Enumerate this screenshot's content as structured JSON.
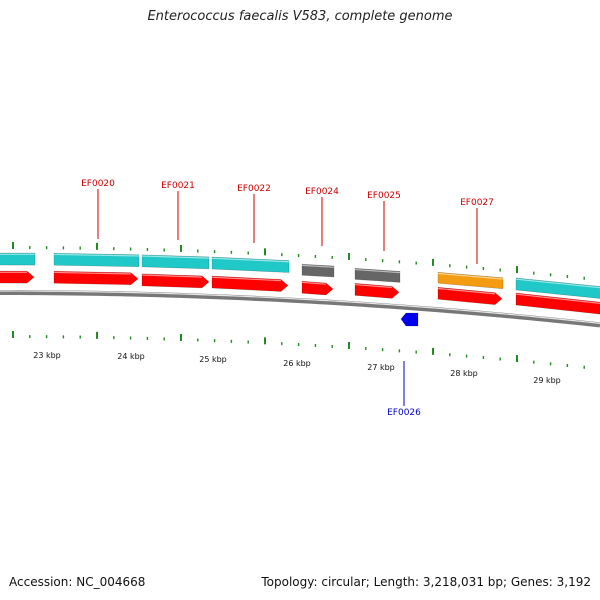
{
  "title": "Enterococcus faecalis V583, complete genome",
  "footer": {
    "accession": "Accession: NC_004668",
    "stats": "Topology: circular; Length: 3,218,031 bp; Genes: 3,192"
  },
  "colors": {
    "backbone": "#777777",
    "forward_cds": "#ff0000",
    "cds_cyan": "#20c8c8",
    "cds_gray": "#666666",
    "cds_orange": "#f39c12",
    "minus_strand": "#0000ee",
    "tick_green": "#228b22",
    "label_red": "#cc0000",
    "label_blue": "#0000cc"
  },
  "scale_labels": [
    "23 kbp",
    "24 kbp",
    "25 kbp",
    "26 kbp",
    "27 kbp",
    "28 kbp",
    "29 kbp"
  ],
  "gene_labels": [
    {
      "name": "EF0020",
      "strand": "+"
    },
    {
      "name": "EF0021",
      "strand": "+"
    },
    {
      "name": "EF0022",
      "strand": "+"
    },
    {
      "name": "EF0024",
      "strand": "+"
    },
    {
      "name": "EF0025",
      "strand": "+"
    },
    {
      "name": "EF0027",
      "strand": "+"
    },
    {
      "name": "EF0026",
      "strand": "-"
    }
  ]
}
